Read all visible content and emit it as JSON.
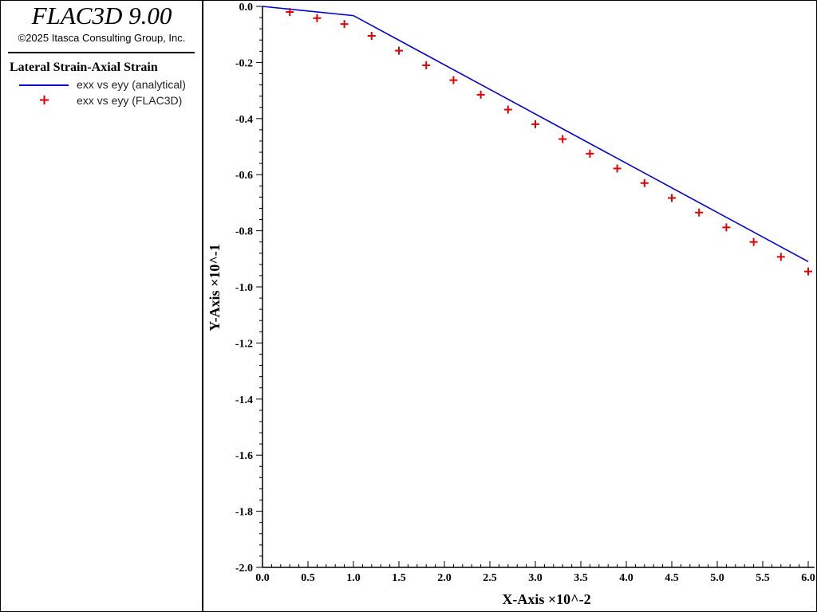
{
  "app": {
    "title": "FLAC3D 9.00",
    "copyright": "©2025 Itasca Consulting Group, Inc."
  },
  "legend": {
    "title": "Lateral Strain-Axial Strain",
    "entries": [
      {
        "label": "exx vs eyy (analytical)",
        "style": "line",
        "color": "#0000cc"
      },
      {
        "label": "exx vs eyy (FLAC3D)",
        "style": "plus-marker",
        "color": "#e00000"
      }
    ]
  },
  "chart_data": {
    "type": "line",
    "xlabel": "X-Axis ×10^-2",
    "ylabel": "Y-Axis ×10^-1",
    "xlim": [
      0.0,
      6.0
    ],
    "ylim": [
      -2.0,
      0.0
    ],
    "x_ticks": [
      "0.0",
      "0.5",
      "1.0",
      "1.5",
      "2.0",
      "2.5",
      "3.0",
      "3.5",
      "4.0",
      "4.5",
      "5.0",
      "5.5",
      "6.0"
    ],
    "y_ticks": [
      "0.0",
      "-0.2",
      "-0.4",
      "-0.6",
      "-0.8",
      "-1.0",
      "-1.2",
      "-1.4",
      "-1.6",
      "-1.8",
      "-2.0"
    ],
    "grid": false,
    "series": [
      {
        "name": "exx vs eyy (analytical)",
        "type": "line",
        "color": "#0000cc",
        "points": [
          [
            0.0,
            0.0
          ],
          [
            1.0,
            -0.033
          ],
          [
            6.0,
            -0.91
          ]
        ]
      },
      {
        "name": "exx vs eyy (FLAC3D)",
        "type": "scatter",
        "marker": "plus",
        "color": "#e00000",
        "points": [
          [
            0.3,
            -0.02
          ],
          [
            0.6,
            -0.042
          ],
          [
            0.9,
            -0.063
          ],
          [
            1.2,
            -0.105
          ],
          [
            1.5,
            -0.158
          ],
          [
            1.8,
            -0.21
          ],
          [
            2.1,
            -0.263
          ],
          [
            2.4,
            -0.315
          ],
          [
            2.7,
            -0.368
          ],
          [
            3.0,
            -0.42
          ],
          [
            3.3,
            -0.473
          ],
          [
            3.6,
            -0.525
          ],
          [
            3.9,
            -0.578
          ],
          [
            4.2,
            -0.63
          ],
          [
            4.5,
            -0.683
          ],
          [
            4.8,
            -0.735
          ],
          [
            5.1,
            -0.788
          ],
          [
            5.4,
            -0.84
          ],
          [
            5.7,
            -0.893
          ],
          [
            6.0,
            -0.945
          ]
        ]
      }
    ]
  }
}
